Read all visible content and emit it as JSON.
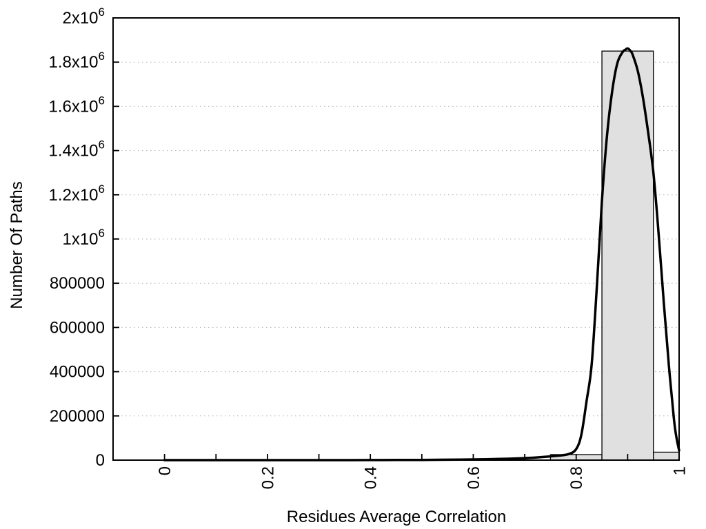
{
  "chart_data": {
    "type": "bar",
    "subtype": "histogram-with-fit-curve",
    "title": "",
    "xlabel": "Residues Average Correlation",
    "ylabel": "Number Of Paths",
    "xlim": [
      -0.1,
      1.0
    ],
    "ylim": [
      0,
      2000000
    ],
    "grid": "horizontal-dotted",
    "legend": "none",
    "x_ticks": [
      {
        "v": 0.0,
        "label": "0"
      },
      {
        "v": 0.1,
        "label": ""
      },
      {
        "v": 0.2,
        "label": "0.2"
      },
      {
        "v": 0.3,
        "label": ""
      },
      {
        "v": 0.4,
        "label": "0.4"
      },
      {
        "v": 0.5,
        "label": ""
      },
      {
        "v": 0.6,
        "label": "0.6"
      },
      {
        "v": 0.7,
        "label": ""
      },
      {
        "v": 0.8,
        "label": "0.8"
      },
      {
        "v": 0.9,
        "label": ""
      },
      {
        "v": 1.0,
        "label": "1"
      }
    ],
    "y_ticks": [
      {
        "v": 0,
        "label": "0"
      },
      {
        "v": 200000,
        "label": "200000"
      },
      {
        "v": 400000,
        "label": "400000"
      },
      {
        "v": 600000,
        "label": "600000"
      },
      {
        "v": 800000,
        "label": "800000"
      },
      {
        "v": 1000000,
        "label": "1x10^6"
      },
      {
        "v": 1200000,
        "label": "1.2x10^6"
      },
      {
        "v": 1400000,
        "label": "1.4x10^6"
      },
      {
        "v": 1600000,
        "label": "1.6x10^6"
      },
      {
        "v": 1800000,
        "label": "1.8x10^6"
      },
      {
        "v": 2000000,
        "label": "2x10^6"
      }
    ],
    "bars": [
      {
        "x0": 0.75,
        "x1": 0.85,
        "value": 25000
      },
      {
        "x0": 0.85,
        "x1": 0.95,
        "value": 1850000
      },
      {
        "x0": 0.95,
        "x1": 1.0,
        "value": 36000
      }
    ],
    "curve": {
      "name": "fit-curve",
      "points": [
        [
          0.0,
          0
        ],
        [
          0.05,
          0
        ],
        [
          0.1,
          0
        ],
        [
          0.15,
          0
        ],
        [
          0.2,
          0
        ],
        [
          0.25,
          0
        ],
        [
          0.3,
          0
        ],
        [
          0.35,
          100
        ],
        [
          0.4,
          300
        ],
        [
          0.45,
          600
        ],
        [
          0.5,
          1000
        ],
        [
          0.55,
          1800
        ],
        [
          0.6,
          3000
        ],
        [
          0.65,
          5200
        ],
        [
          0.7,
          9000
        ],
        [
          0.73,
          13000
        ],
        [
          0.76,
          19000
        ],
        [
          0.785,
          27000
        ],
        [
          0.8,
          50000
        ],
        [
          0.81,
          115000
        ],
        [
          0.82,
          265000
        ],
        [
          0.83,
          430000
        ],
        [
          0.84,
          780000
        ],
        [
          0.85,
          1170000
        ],
        [
          0.86,
          1470000
        ],
        [
          0.87,
          1670000
        ],
        [
          0.88,
          1795000
        ],
        [
          0.89,
          1845000
        ],
        [
          0.895,
          1855000
        ],
        [
          0.9,
          1862000
        ],
        [
          0.905,
          1852000
        ],
        [
          0.91,
          1832000
        ],
        [
          0.92,
          1757000
        ],
        [
          0.93,
          1635000
        ],
        [
          0.94,
          1480000
        ],
        [
          0.95,
          1300000
        ],
        [
          0.96,
          1030000
        ],
        [
          0.97,
          720000
        ],
        [
          0.98,
          430000
        ],
        [
          0.99,
          185000
        ],
        [
          0.995,
          100000
        ],
        [
          1.0,
          44000
        ]
      ]
    },
    "colors": {
      "background": "#ffffff",
      "bar_fill": "#e0e0e0",
      "bar_stroke": "#000000",
      "curve": "#000000",
      "grid": "#b3b3b3",
      "axis": "#000000",
      "text": "#000000"
    }
  }
}
